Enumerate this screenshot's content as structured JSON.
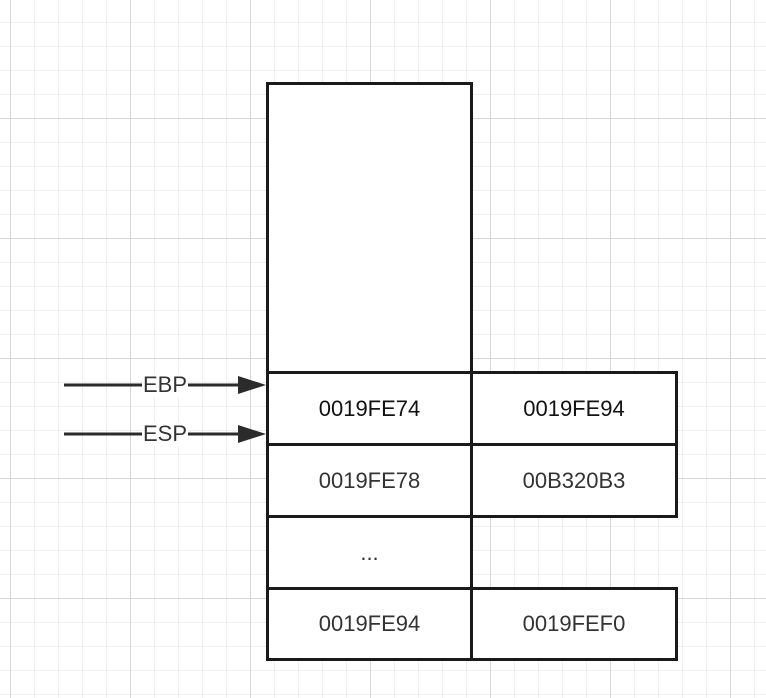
{
  "pointers": [
    {
      "label": "EBP"
    },
    {
      "label": "ESP"
    }
  ],
  "stack_rows": [
    {
      "address": "0019FE74",
      "value": "0019FE94"
    },
    {
      "address": "0019FE78",
      "value": "00B320B3"
    },
    {
      "address": "...",
      "value": ""
    },
    {
      "address": "0019FE94",
      "value": "0019FEF0"
    }
  ],
  "colors": {
    "border": "#1a1a1a",
    "text": "#333333",
    "grid": "#d6d6d6"
  }
}
